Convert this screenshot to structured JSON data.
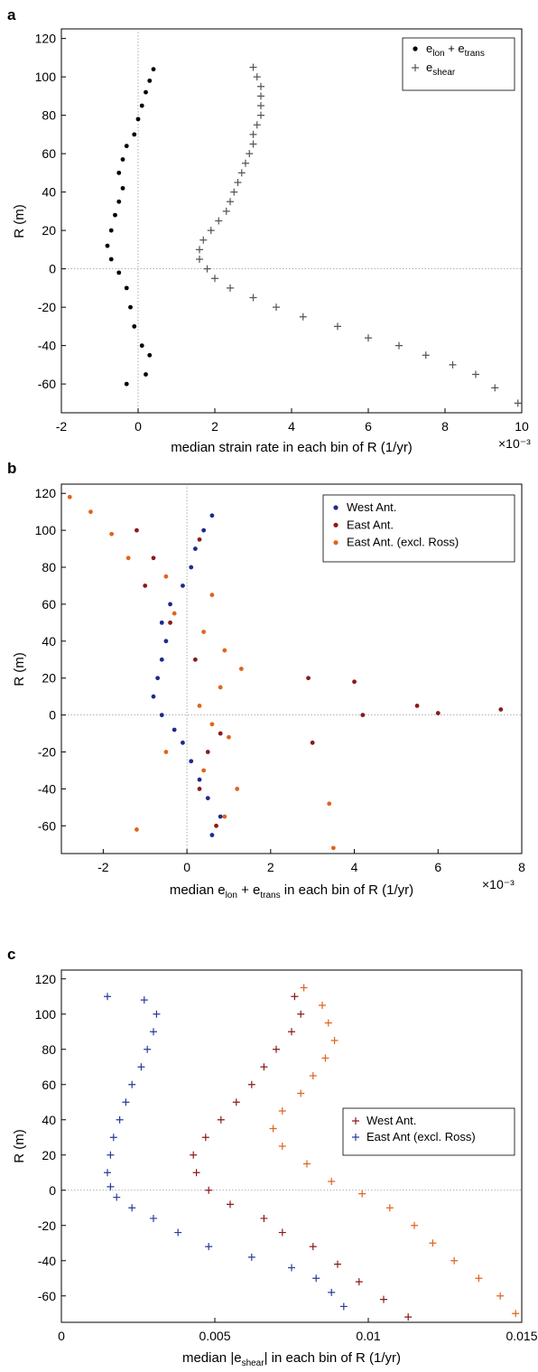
{
  "chart_data": [
    {
      "panel": "a",
      "type": "scatter",
      "xlim": [
        -2,
        10
      ],
      "ylim": [
        -75,
        125
      ],
      "x_ticks": [
        "-2",
        "0",
        "2",
        "4",
        "6",
        "8",
        "10"
      ],
      "y_ticks": [
        "-60",
        "-40",
        "-20",
        "0",
        "20",
        "40",
        "60",
        "80",
        "100",
        "120"
      ],
      "x_multiplier": "×10⁻³",
      "xlabel": "median strain rate in each bin of R (1/yr)",
      "ylabel": "R (m)",
      "legend_position": "top-right",
      "grid": false,
      "reference_lines": {
        "x": 0,
        "y": 0
      },
      "series": [
        {
          "name": "e_lon + e_trans",
          "legend_main": [
            "e",
            " + e"
          ],
          "legend_subs": [
            "lon",
            "trans"
          ],
          "marker": "dot",
          "color": "#000000",
          "points": [
            [
              -0.3,
              -60
            ],
            [
              0.2,
              -55
            ],
            [
              0.3,
              -45
            ],
            [
              0.1,
              -40
            ],
            [
              -0.1,
              -30
            ],
            [
              -0.2,
              -20
            ],
            [
              -0.3,
              -10
            ],
            [
              -0.5,
              -2
            ],
            [
              -0.7,
              5
            ],
            [
              -0.8,
              12
            ],
            [
              -0.7,
              20
            ],
            [
              -0.6,
              28
            ],
            [
              -0.5,
              35
            ],
            [
              -0.4,
              42
            ],
            [
              -0.5,
              50
            ],
            [
              -0.4,
              57
            ],
            [
              -0.3,
              64
            ],
            [
              -0.1,
              70
            ],
            [
              0,
              78
            ],
            [
              0.1,
              85
            ],
            [
              0.2,
              92
            ],
            [
              0.3,
              98
            ],
            [
              0.4,
              104
            ]
          ]
        },
        {
          "name": "e_shear",
          "legend_main": [
            "e"
          ],
          "legend_subs": [
            "shear"
          ],
          "marker": "plus",
          "color": "#555555",
          "points": [
            [
              9.9,
              -70
            ],
            [
              9.3,
              -62
            ],
            [
              8.8,
              -55
            ],
            [
              8.2,
              -50
            ],
            [
              7.5,
              -45
            ],
            [
              6.8,
              -40
            ],
            [
              6.0,
              -36
            ],
            [
              5.2,
              -30
            ],
            [
              4.3,
              -25
            ],
            [
              3.6,
              -20
            ],
            [
              3.0,
              -15
            ],
            [
              2.4,
              -10
            ],
            [
              2.0,
              -5
            ],
            [
              1.8,
              0
            ],
            [
              1.6,
              5
            ],
            [
              1.6,
              10
            ],
            [
              1.7,
              15
            ],
            [
              1.9,
              20
            ],
            [
              2.1,
              25
            ],
            [
              2.3,
              30
            ],
            [
              2.4,
              35
            ],
            [
              2.5,
              40
            ],
            [
              2.6,
              45
            ],
            [
              2.7,
              50
            ],
            [
              2.8,
              55
            ],
            [
              2.9,
              60
            ],
            [
              3.0,
              65
            ],
            [
              3.0,
              70
            ],
            [
              3.1,
              75
            ],
            [
              3.2,
              80
            ],
            [
              3.2,
              85
            ],
            [
              3.2,
              90
            ],
            [
              3.2,
              95
            ],
            [
              3.1,
              100
            ],
            [
              3.0,
              105
            ]
          ]
        }
      ]
    },
    {
      "panel": "b",
      "type": "scatter",
      "xlim": [
        -3,
        8
      ],
      "ylim": [
        -75,
        125
      ],
      "x_ticks": [
        "-2",
        "0",
        "2",
        "4",
        "6",
        "8"
      ],
      "y_ticks": [
        "-60",
        "-40",
        "-20",
        "0",
        "20",
        "40",
        "60",
        "80",
        "100",
        "120"
      ],
      "x_multiplier": "×10⁻³",
      "xlabel_parts": [
        "median e",
        "lon",
        " + e",
        "trans",
        " in each bin of R (1/yr)"
      ],
      "ylabel": "R (m)",
      "legend_position": "top-right",
      "grid": false,
      "reference_lines": {
        "x": 0,
        "y": 0
      },
      "series": [
        {
          "name": "West Ant.",
          "marker": "dot",
          "color": "#1f2a8c",
          "points": [
            [
              0.6,
              -65
            ],
            [
              0.8,
              -55
            ],
            [
              0.5,
              -45
            ],
            [
              0.3,
              -35
            ],
            [
              0.1,
              -25
            ],
            [
              -0.1,
              -15
            ],
            [
              -0.3,
              -8
            ],
            [
              -0.6,
              0
            ],
            [
              -0.8,
              10
            ],
            [
              -0.7,
              20
            ],
            [
              -0.6,
              30
            ],
            [
              -0.5,
              40
            ],
            [
              -0.6,
              50
            ],
            [
              -0.4,
              60
            ],
            [
              -0.1,
              70
            ],
            [
              0.1,
              80
            ],
            [
              0.2,
              90
            ],
            [
              0.4,
              100
            ],
            [
              0.6,
              108
            ]
          ]
        },
        {
          "name": "East Ant.",
          "marker": "dot",
          "color": "#8b1a1a",
          "points": [
            [
              0.7,
              -60
            ],
            [
              0.3,
              -40
            ],
            [
              0.5,
              -20
            ],
            [
              0.8,
              -10
            ],
            [
              3.0,
              -15
            ],
            [
              4.2,
              0
            ],
            [
              5.5,
              5
            ],
            [
              6.0,
              1
            ],
            [
              7.5,
              3
            ],
            [
              2.9,
              20
            ],
            [
              4.0,
              18
            ],
            [
              0.2,
              30
            ],
            [
              -0.4,
              50
            ],
            [
              -1.0,
              70
            ],
            [
              -0.8,
              85
            ],
            [
              -1.2,
              100
            ],
            [
              0.3,
              95
            ]
          ]
        },
        {
          "name": "East Ant. (excl. Ross)",
          "marker": "dot",
          "color": "#e0641e",
          "points": [
            [
              -1.2,
              -62
            ],
            [
              0.9,
              -55
            ],
            [
              1.2,
              -40
            ],
            [
              0.4,
              -30
            ],
            [
              -0.5,
              -20
            ],
            [
              1.0,
              -12
            ],
            [
              0.6,
              -5
            ],
            [
              0.3,
              5
            ],
            [
              0.8,
              15
            ],
            [
              1.3,
              25
            ],
            [
              0.9,
              35
            ],
            [
              0.4,
              45
            ],
            [
              -0.3,
              55
            ],
            [
              0.6,
              65
            ],
            [
              -0.5,
              75
            ],
            [
              -1.4,
              85
            ],
            [
              -1.8,
              98
            ],
            [
              -2.3,
              110
            ],
            [
              -2.8,
              118
            ],
            [
              3.4,
              -48
            ],
            [
              3.5,
              -72
            ]
          ]
        }
      ]
    },
    {
      "panel": "c",
      "type": "scatter",
      "xlim": [
        0,
        0.015
      ],
      "ylim": [
        -75,
        125
      ],
      "x_ticks": [
        "0",
        "0.005",
        "0.01",
        "0.015"
      ],
      "y_ticks": [
        "-60",
        "-40",
        "-20",
        "0",
        "20",
        "40",
        "60",
        "80",
        "100",
        "120"
      ],
      "xlabel_parts": [
        "median |e",
        "shear",
        "| in each bin of R (1/yr)"
      ],
      "ylabel": "R (m)",
      "legend_position": "right",
      "grid": false,
      "reference_lines": {
        "y": 0
      },
      "series": [
        {
          "name": "West Ant.",
          "marker": "plus",
          "color": "#8b1a1a",
          "points": [
            [
              0.0113,
              -72
            ],
            [
              0.0105,
              -62
            ],
            [
              0.0097,
              -52
            ],
            [
              0.009,
              -42
            ],
            [
              0.0082,
              -32
            ],
            [
              0.0072,
              -24
            ],
            [
              0.0066,
              -16
            ],
            [
              0.0055,
              -8
            ],
            [
              0.0048,
              0
            ],
            [
              0.0044,
              10
            ],
            [
              0.0043,
              20
            ],
            [
              0.0047,
              30
            ],
            [
              0.0052,
              40
            ],
            [
              0.0057,
              50
            ],
            [
              0.0062,
              60
            ],
            [
              0.0066,
              70
            ],
            [
              0.007,
              80
            ],
            [
              0.0075,
              90
            ],
            [
              0.0078,
              100
            ],
            [
              0.0076,
              110
            ]
          ]
        },
        {
          "name": "East Ant (excl. Ross)",
          "marker": "plus",
          "color": "#2b3a9a",
          "points": [
            [
              0.0092,
              -66
            ],
            [
              0.0088,
              -58
            ],
            [
              0.0083,
              -50
            ],
            [
              0.0075,
              -44
            ],
            [
              0.0062,
              -38
            ],
            [
              0.0048,
              -32
            ],
            [
              0.0038,
              -24
            ],
            [
              0.003,
              -16
            ],
            [
              0.0023,
              -10
            ],
            [
              0.0018,
              -4
            ],
            [
              0.0016,
              2
            ],
            [
              0.0015,
              10
            ],
            [
              0.0016,
              20
            ],
            [
              0.0017,
              30
            ],
            [
              0.0019,
              40
            ],
            [
              0.0021,
              50
            ],
            [
              0.0023,
              60
            ],
            [
              0.0026,
              70
            ],
            [
              0.0028,
              80
            ],
            [
              0.003,
              90
            ],
            [
              0.0031,
              100
            ],
            [
              0.0027,
              108
            ],
            [
              0.0015,
              110
            ]
          ]
        },
        {
          "name": "",
          "marker": "plus",
          "color": "#e0641e",
          "points": [
            [
              0.0148,
              -70
            ],
            [
              0.0143,
              -60
            ],
            [
              0.0136,
              -50
            ],
            [
              0.0128,
              -40
            ],
            [
              0.0121,
              -30
            ],
            [
              0.0115,
              -20
            ],
            [
              0.0107,
              -10
            ],
            [
              0.0098,
              -2
            ],
            [
              0.0088,
              5
            ],
            [
              0.008,
              15
            ],
            [
              0.0072,
              25
            ],
            [
              0.0069,
              35
            ],
            [
              0.0072,
              45
            ],
            [
              0.0078,
              55
            ],
            [
              0.0082,
              65
            ],
            [
              0.0086,
              75
            ],
            [
              0.0089,
              85
            ],
            [
              0.0087,
              95
            ],
            [
              0.0085,
              105
            ],
            [
              0.0079,
              115
            ]
          ]
        }
      ]
    }
  ]
}
